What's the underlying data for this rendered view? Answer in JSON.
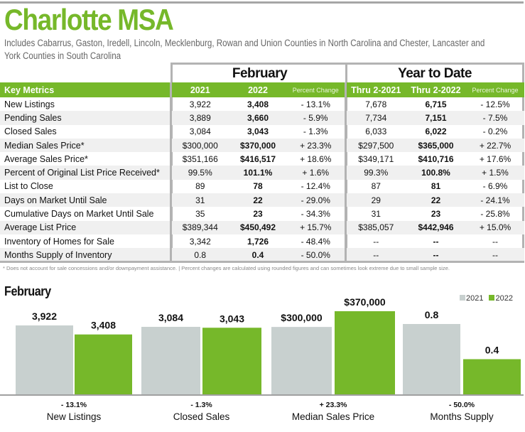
{
  "header": {
    "title": "Charlotte MSA",
    "subtitle": "Includes Cabarrus, Gaston, Iredell, Lincoln, Mecklenburg, Rowan and Union Counties in North Carolina and Chester, Lancaster and York Counties in South Carolina"
  },
  "table": {
    "sections": {
      "february": "February",
      "ytd": "Year to Date"
    },
    "columns": [
      "Key Metrics",
      "2021",
      "2022",
      "Percent Change",
      "Thru 2-2021",
      "Thru 2-2022",
      "Percent Change"
    ],
    "rows": [
      {
        "metric": "New Listings",
        "feb2021": "3,922",
        "feb2022": "3,408",
        "feb_pct": "- 13.1%",
        "ytd2021": "7,678",
        "ytd2022": "6,715",
        "ytd_pct": "- 12.5%"
      },
      {
        "metric": "Pending Sales",
        "feb2021": "3,889",
        "feb2022": "3,660",
        "feb_pct": "- 5.9%",
        "ytd2021": "7,734",
        "ytd2022": "7,151",
        "ytd_pct": "- 7.5%"
      },
      {
        "metric": "Closed Sales",
        "feb2021": "3,084",
        "feb2022": "3,043",
        "feb_pct": "- 1.3%",
        "ytd2021": "6,033",
        "ytd2022": "6,022",
        "ytd_pct": "- 0.2%"
      },
      {
        "metric": "Median Sales Price*",
        "feb2021": "$300,000",
        "feb2022": "$370,000",
        "feb_pct": "+ 23.3%",
        "ytd2021": "$297,500",
        "ytd2022": "$365,000",
        "ytd_pct": "+ 22.7%"
      },
      {
        "metric": "Average Sales Price*",
        "feb2021": "$351,166",
        "feb2022": "$416,517",
        "feb_pct": "+ 18.6%",
        "ytd2021": "$349,171",
        "ytd2022": "$410,716",
        "ytd_pct": "+ 17.6%"
      },
      {
        "metric": "Percent of Original List Price Received*",
        "feb2021": "99.5%",
        "feb2022": "101.1%",
        "feb_pct": "+ 1.6%",
        "ytd2021": "99.3%",
        "ytd2022": "100.8%",
        "ytd_pct": "+ 1.5%"
      },
      {
        "metric": "List to Close",
        "feb2021": "89",
        "feb2022": "78",
        "feb_pct": "- 12.4%",
        "ytd2021": "87",
        "ytd2022": "81",
        "ytd_pct": "- 6.9%"
      },
      {
        "metric": "Days on Market Until Sale",
        "feb2021": "31",
        "feb2022": "22",
        "feb_pct": "- 29.0%",
        "ytd2021": "29",
        "ytd2022": "22",
        "ytd_pct": "- 24.1%"
      },
      {
        "metric": "Cumulative Days on Market Until Sale",
        "feb2021": "35",
        "feb2022": "23",
        "feb_pct": "- 34.3%",
        "ytd2021": "31",
        "ytd2022": "23",
        "ytd_pct": "- 25.8%"
      },
      {
        "metric": "Average List Price",
        "feb2021": "$389,344",
        "feb2022": "$450,492",
        "feb_pct": "+ 15.7%",
        "ytd2021": "$385,057",
        "ytd2022": "$442,946",
        "ytd_pct": "+ 15.0%"
      },
      {
        "metric": "Inventory of Homes for Sale",
        "feb2021": "3,342",
        "feb2022": "1,726",
        "feb_pct": "- 48.4%",
        "ytd2021": "--",
        "ytd2022": "--",
        "ytd_pct": "--"
      },
      {
        "metric": "Months Supply of Inventory",
        "feb2021": "0.8",
        "feb2022": "0.4",
        "feb_pct": "- 50.0%",
        "ytd2021": "--",
        "ytd2022": "--",
        "ytd_pct": "--"
      }
    ],
    "footnote": "* Does not account for sale concessions and/or downpayment assistance.  |  Percent changes are calculated using rounded figures and can sometimes look extreme due to small sample size."
  },
  "colors": {
    "brand_green": "#76b82a",
    "bar_2021": "#c8d0cf",
    "bar_2022": "#76b82a",
    "rule_gray": "#b3b3b3"
  },
  "chart_data": {
    "type": "bar",
    "title": "February",
    "legend": {
      "position": "top-right",
      "entries": [
        "2021",
        "2022"
      ]
    },
    "categories": [
      "New Listings",
      "Closed Sales",
      "Median Sales Price",
      "Months Supply"
    ],
    "series": [
      {
        "name": "2021",
        "values": [
          3922,
          3084,
          300000,
          0.8
        ],
        "labels": [
          "3,922",
          "3,084",
          "$300,000",
          "0.8"
        ]
      },
      {
        "name": "2022",
        "values": [
          3408,
          3043,
          370000,
          0.4
        ],
        "labels": [
          "3,408",
          "3,043",
          "$370,000",
          "0.4"
        ]
      }
    ],
    "percent_changes": [
      "- 13.1%",
      "- 1.3%",
      "+ 23.3%",
      "- 50.0%"
    ],
    "xlabel": "",
    "ylabel": "",
    "grid": false
  }
}
